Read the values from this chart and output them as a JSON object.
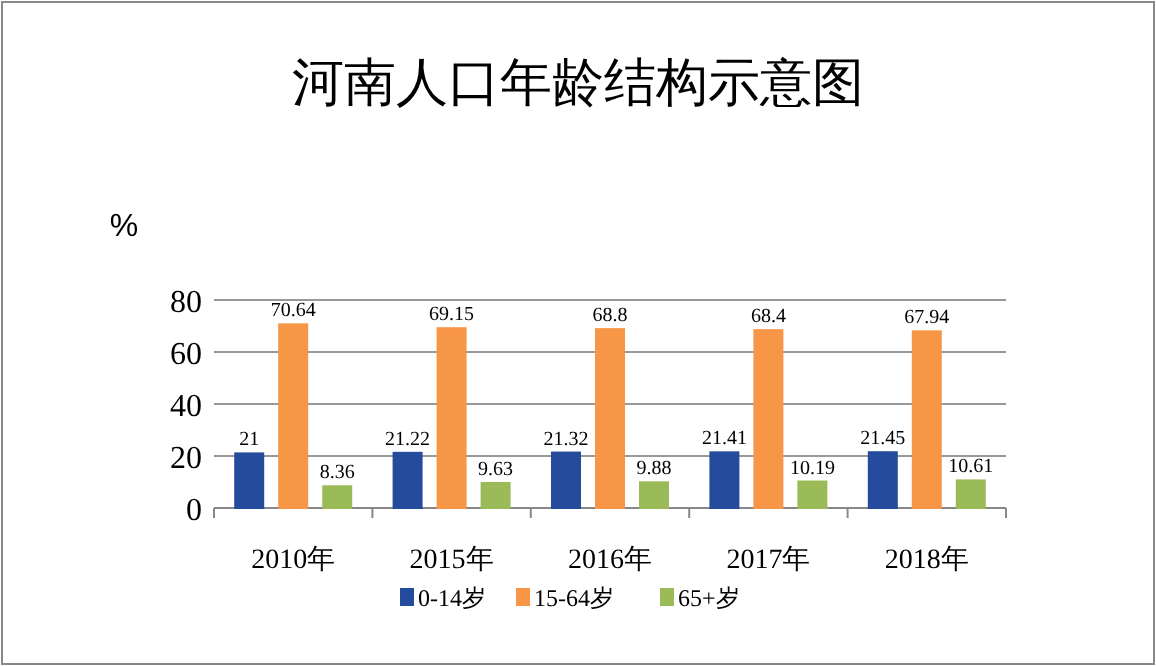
{
  "chart_data": {
    "type": "bar",
    "title": "河南人口年龄结构示意图",
    "ylabel": "%",
    "categories": [
      "2010年",
      "2015年",
      "2016年",
      "2017年",
      "2018年"
    ],
    "series": [
      {
        "name": "0-14岁",
        "color": "#254b9c",
        "values": [
          21,
          21.22,
          21.32,
          21.41,
          21.45
        ]
      },
      {
        "name": "15-64岁",
        "color": "#f79646",
        "values": [
          70.64,
          69.15,
          68.8,
          68.4,
          67.94
        ]
      },
      {
        "name": "65+岁",
        "color": "#9bbb59",
        "values": [
          8.36,
          9.63,
          9.88,
          10.19,
          10.61
        ]
      }
    ],
    "ylim": [
      0,
      80
    ],
    "yticks": [
      0,
      20,
      40,
      60,
      80
    ],
    "grid": "y",
    "data_labels": true,
    "legend": "bottom"
  }
}
